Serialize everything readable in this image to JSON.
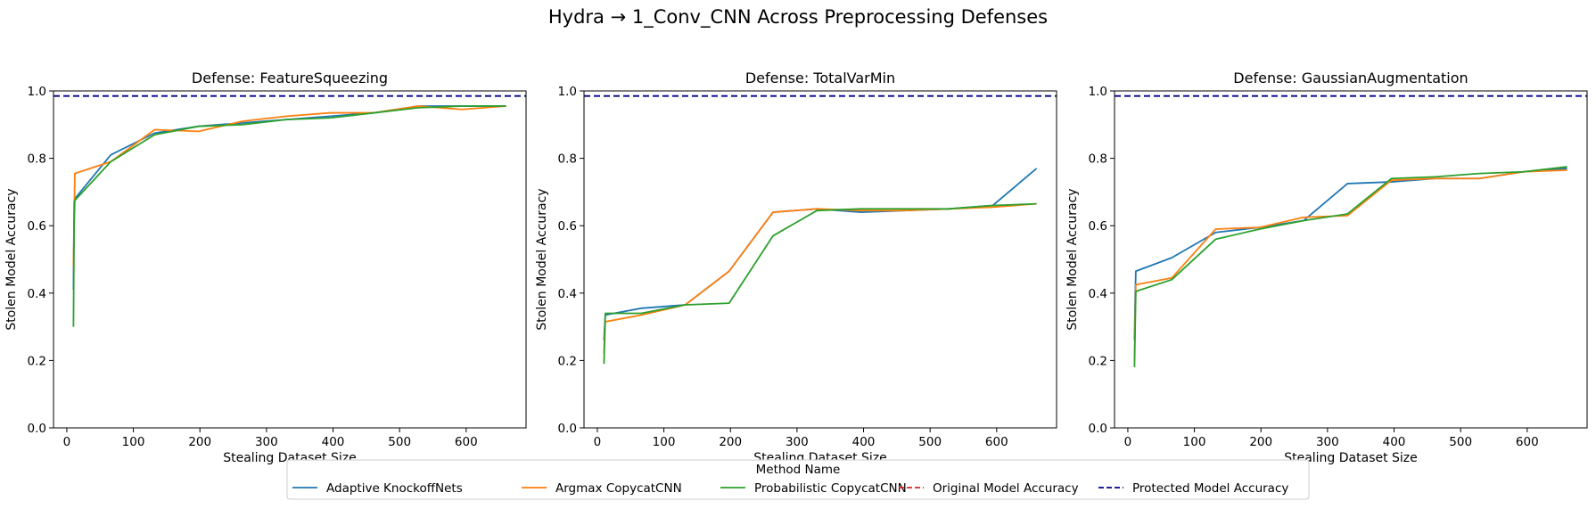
{
  "suptitle": "Hydra → 1_Conv_CNN Across Preprocessing Defenses",
  "colors": {
    "Adaptive KnockoffNets": "#1f77b4",
    "Argmax CopycatCNN": "#ff7f0e",
    "Probabilistic CopycatCNN": "#2ca02c",
    "Original Model Accuracy": "#d62728",
    "Protected Model Accuracy": "#00008b"
  },
  "legend": {
    "title": "Method Name",
    "entries": [
      {
        "label": "Adaptive KnockoffNets",
        "style": "solid"
      },
      {
        "label": "Argmax CopycatCNN",
        "style": "solid"
      },
      {
        "label": "Probabilistic CopycatCNN",
        "style": "solid"
      },
      {
        "label": "Original Model Accuracy",
        "style": "dashed"
      },
      {
        "label": "Protected Model Accuracy",
        "style": "dashed"
      }
    ]
  },
  "chart_data": [
    {
      "type": "line",
      "title": "Defense: FeatureSqueezing",
      "xlabel": "Stealing Dataset Size",
      "ylabel": "Stolen Model Accuracy",
      "xlim": [
        -20,
        690
      ],
      "ylim": [
        0,
        1
      ],
      "xticks": [
        0,
        100,
        200,
        300,
        400,
        500,
        600
      ],
      "yticks": [
        0.0,
        0.2,
        0.4,
        0.6,
        0.8,
        1.0
      ],
      "hlines": [
        {
          "name": "Protected Model Accuracy",
          "y": 0.985
        }
      ],
      "series": [
        {
          "name": "Adaptive KnockoffNets",
          "x": [
            10,
            11,
            12,
            66,
            132,
            198,
            264,
            330,
            396,
            462,
            528,
            594,
            660
          ],
          "y": [
            0.41,
            0.67,
            0.68,
            0.81,
            0.875,
            0.895,
            0.905,
            0.915,
            0.925,
            0.935,
            0.955,
            0.955,
            0.955
          ]
        },
        {
          "name": "Argmax CopycatCNN",
          "x": [
            10,
            11,
            12,
            66,
            132,
            198,
            264,
            330,
            396,
            462,
            528,
            594,
            660
          ],
          "y": [
            0.48,
            0.6,
            0.755,
            0.79,
            0.885,
            0.88,
            0.91,
            0.925,
            0.935,
            0.935,
            0.955,
            0.945,
            0.955
          ]
        },
        {
          "name": "Probabilistic CopycatCNN",
          "x": [
            10,
            11,
            12,
            66,
            132,
            198,
            264,
            330,
            396,
            462,
            528,
            594,
            660
          ],
          "y": [
            0.3,
            0.61,
            0.675,
            0.79,
            0.87,
            0.895,
            0.9,
            0.915,
            0.92,
            0.935,
            0.95,
            0.955,
            0.955
          ]
        }
      ]
    },
    {
      "type": "line",
      "title": "Defense: TotalVarMin",
      "xlabel": "Stealing Dataset Size",
      "ylabel": "Stolen Model Accuracy",
      "xlim": [
        -20,
        690
      ],
      "ylim": [
        0,
        1
      ],
      "xticks": [
        0,
        100,
        200,
        300,
        400,
        500,
        600
      ],
      "yticks": [
        0.0,
        0.2,
        0.4,
        0.6,
        0.8,
        1.0
      ],
      "hlines": [
        {
          "name": "Protected Model Accuracy",
          "y": 0.985
        }
      ],
      "series": [
        {
          "name": "Adaptive KnockoffNets",
          "x": [
            10,
            11,
            12,
            66,
            132,
            198,
            264,
            330,
            396,
            462,
            528,
            594,
            660
          ],
          "y": [
            0.26,
            0.3,
            0.335,
            0.355,
            0.365,
            0.465,
            0.64,
            0.65,
            0.64,
            0.645,
            0.65,
            0.66,
            0.77
          ]
        },
        {
          "name": "Argmax CopycatCNN",
          "x": [
            10,
            11,
            12,
            66,
            132,
            198,
            264,
            330,
            396,
            462,
            528,
            594,
            660
          ],
          "y": [
            0.22,
            0.28,
            0.315,
            0.335,
            0.365,
            0.465,
            0.64,
            0.65,
            0.645,
            0.645,
            0.65,
            0.655,
            0.665
          ]
        },
        {
          "name": "Probabilistic CopycatCNN",
          "x": [
            10,
            11,
            12,
            66,
            132,
            198,
            264,
            330,
            396,
            462,
            528,
            594,
            660
          ],
          "y": [
            0.19,
            0.26,
            0.34,
            0.34,
            0.365,
            0.37,
            0.57,
            0.645,
            0.65,
            0.65,
            0.65,
            0.66,
            0.665
          ]
        }
      ]
    },
    {
      "type": "line",
      "title": "Defense: GaussianAugmentation",
      "xlabel": "Stealing Dataset Size",
      "ylabel": "Stolen Model Accuracy",
      "xlim": [
        -20,
        690
      ],
      "ylim": [
        0,
        1
      ],
      "xticks": [
        0,
        100,
        200,
        300,
        400,
        500,
        600
      ],
      "yticks": [
        0.0,
        0.2,
        0.4,
        0.6,
        0.8,
        1.0
      ],
      "hlines": [
        {
          "name": "Protected Model Accuracy",
          "y": 0.985
        }
      ],
      "series": [
        {
          "name": "Adaptive KnockoffNets",
          "x": [
            10,
            11,
            12,
            66,
            132,
            198,
            264,
            330,
            396,
            462,
            528,
            594,
            660
          ],
          "y": [
            0.26,
            0.38,
            0.465,
            0.505,
            0.58,
            0.595,
            0.615,
            0.725,
            0.73,
            0.74,
            0.74,
            0.76,
            0.77
          ]
        },
        {
          "name": "Argmax CopycatCNN",
          "x": [
            10,
            11,
            12,
            66,
            132,
            198,
            264,
            330,
            396,
            462,
            528,
            594,
            660
          ],
          "y": [
            0.2,
            0.33,
            0.425,
            0.445,
            0.59,
            0.595,
            0.625,
            0.63,
            0.735,
            0.74,
            0.74,
            0.76,
            0.765
          ]
        },
        {
          "name": "Probabilistic CopycatCNN",
          "x": [
            10,
            11,
            12,
            66,
            132,
            198,
            264,
            330,
            396,
            462,
            528,
            594,
            660
          ],
          "y": [
            0.18,
            0.3,
            0.405,
            0.44,
            0.56,
            0.59,
            0.615,
            0.635,
            0.74,
            0.745,
            0.755,
            0.76,
            0.775
          ]
        }
      ]
    }
  ]
}
